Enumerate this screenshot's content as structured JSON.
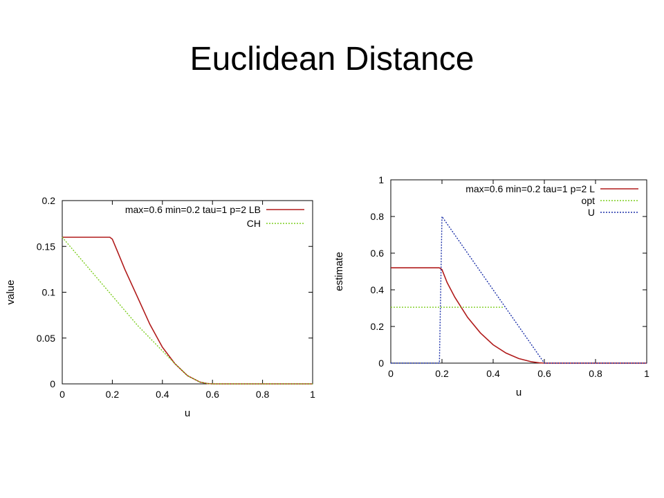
{
  "slide": {
    "title": "Euclidean Distance"
  },
  "colors": {
    "red": "#b01a1a",
    "green": "#7ccd1e",
    "blue": "#1a2fa8"
  },
  "chart_data": [
    {
      "type": "line",
      "xlabel": "u",
      "ylabel": "value",
      "xlim": [
        0,
        1
      ],
      "ylim": [
        0,
        0.2
      ],
      "xticks": [
        "0",
        "0.2",
        "0.4",
        "0.6",
        "0.8",
        "1"
      ],
      "yticks": [
        "0",
        "0.05",
        "0.1",
        "0.15",
        "0.2"
      ],
      "grid": false,
      "legend_position": "top-right",
      "series": [
        {
          "name": "max=0.6 min=0.2 tau=1 p=2 LB",
          "color": "#b01a1a",
          "dash": "solid",
          "x": [
            0,
            0.19,
            0.2,
            0.22,
            0.25,
            0.3,
            0.35,
            0.4,
            0.45,
            0.5,
            0.55,
            0.58,
            0.6,
            1.0
          ],
          "y": [
            0.16,
            0.16,
            0.158,
            0.145,
            0.125,
            0.095,
            0.065,
            0.04,
            0.022,
            0.009,
            0.002,
            0.0003,
            0,
            0
          ]
        },
        {
          "name": "CH",
          "color": "#7ccd1e",
          "dash": "dotted",
          "x": [
            0,
            0.1,
            0.2,
            0.3,
            0.4,
            0.45,
            0.5,
            0.55,
            0.58,
            0.6,
            1.0
          ],
          "y": [
            0.16,
            0.128,
            0.096,
            0.064,
            0.036,
            0.022,
            0.009,
            0.002,
            0.0003,
            0,
            0
          ]
        }
      ]
    },
    {
      "type": "line",
      "xlabel": "u",
      "ylabel": "estimate",
      "xlim": [
        0,
        1
      ],
      "ylim": [
        0,
        1
      ],
      "xticks": [
        "0",
        "0.2",
        "0.4",
        "0.6",
        "0.8",
        "1"
      ],
      "yticks": [
        "0",
        "0.2",
        "0.4",
        "0.6",
        "0.8",
        "1"
      ],
      "grid": false,
      "legend_position": "top-right",
      "series": [
        {
          "name": "max=0.6 min=0.2 tau=1 p=2 L",
          "color": "#b01a1a",
          "dash": "solid",
          "x": [
            0,
            0.19,
            0.2,
            0.22,
            0.25,
            0.3,
            0.35,
            0.4,
            0.45,
            0.5,
            0.55,
            0.58,
            0.6,
            1.0
          ],
          "y": [
            0.52,
            0.52,
            0.51,
            0.44,
            0.36,
            0.25,
            0.165,
            0.1,
            0.055,
            0.025,
            0.007,
            0.002,
            0,
            0
          ]
        },
        {
          "name": "opt",
          "color": "#7ccd1e",
          "dash": "dotted",
          "x": [
            0,
            0.44
          ],
          "y": [
            0.305,
            0.305
          ]
        },
        {
          "name": "U",
          "color": "#1a2fa8",
          "dash": "dotted",
          "x": [
            0,
            0.19,
            0.2,
            0.4,
            0.6,
            1.0
          ],
          "y": [
            0,
            0,
            0.8,
            0.4,
            0,
            0
          ]
        }
      ]
    }
  ]
}
